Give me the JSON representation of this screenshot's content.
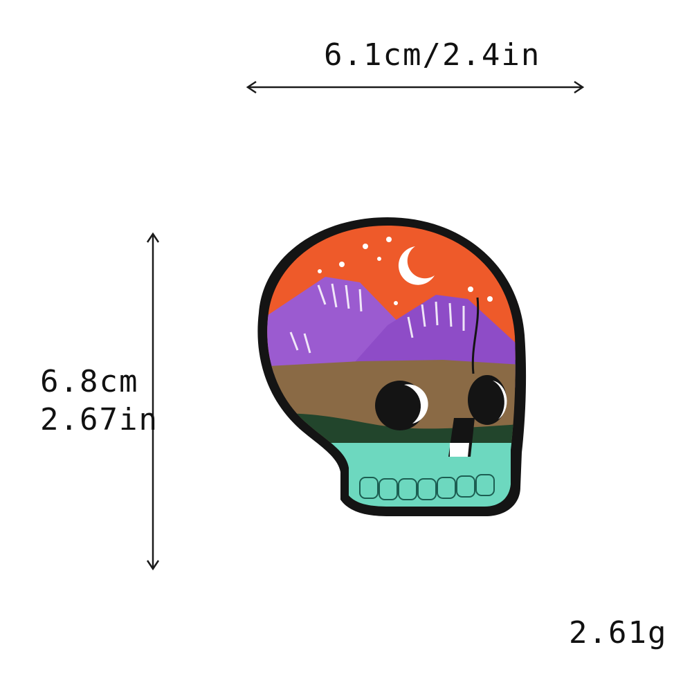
{
  "dimensions": {
    "width": "6.1cm/2.4in",
    "height_cm": "6.8cm",
    "height_in": "2.67in",
    "weight": "2.61g"
  },
  "product": {
    "type": "embroidered skull patch",
    "colors": {
      "sky": "#ee5a2a",
      "mountains": "#9b5bd0",
      "ground": "#8a6a45",
      "grass": "#22452c",
      "jaw": "#6dd8bf",
      "border": "#141414"
    }
  }
}
